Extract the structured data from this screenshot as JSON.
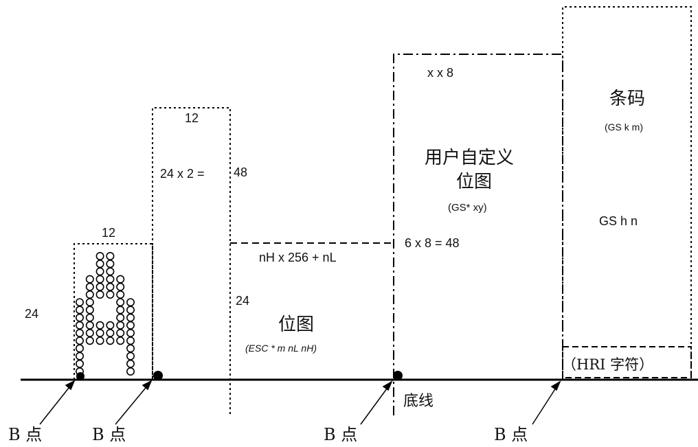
{
  "labels": {
    "char_height": "24",
    "char_width": "12",
    "double_char_width": "12",
    "double_char_height": "24 x 2 =",
    "double_char_height_value": "48",
    "bitmap_width": "nH x 256 + nL",
    "bitmap_height": "24",
    "bitmap_title": "位图",
    "bitmap_cmd": "(ESC * m nL nH)",
    "user_bitmap_width": "x x 8",
    "user_bitmap_title_line1": "用户自定义",
    "user_bitmap_title_line2": "位图",
    "user_bitmap_cmd": "(GS* xy)",
    "user_bitmap_height": "6 x 8 = 48",
    "barcode_title": "条码",
    "barcode_cmd": "(GS k m)",
    "barcode_height_cmd": "GS h n",
    "hri_label": "（HRI 字符）",
    "baseline": "底线",
    "b_point_1": "B 点",
    "b_point_2": "B 点",
    "b_point_3": "B 点",
    "b_point_4": "B 点"
  },
  "glyph": {
    "character": "A"
  }
}
